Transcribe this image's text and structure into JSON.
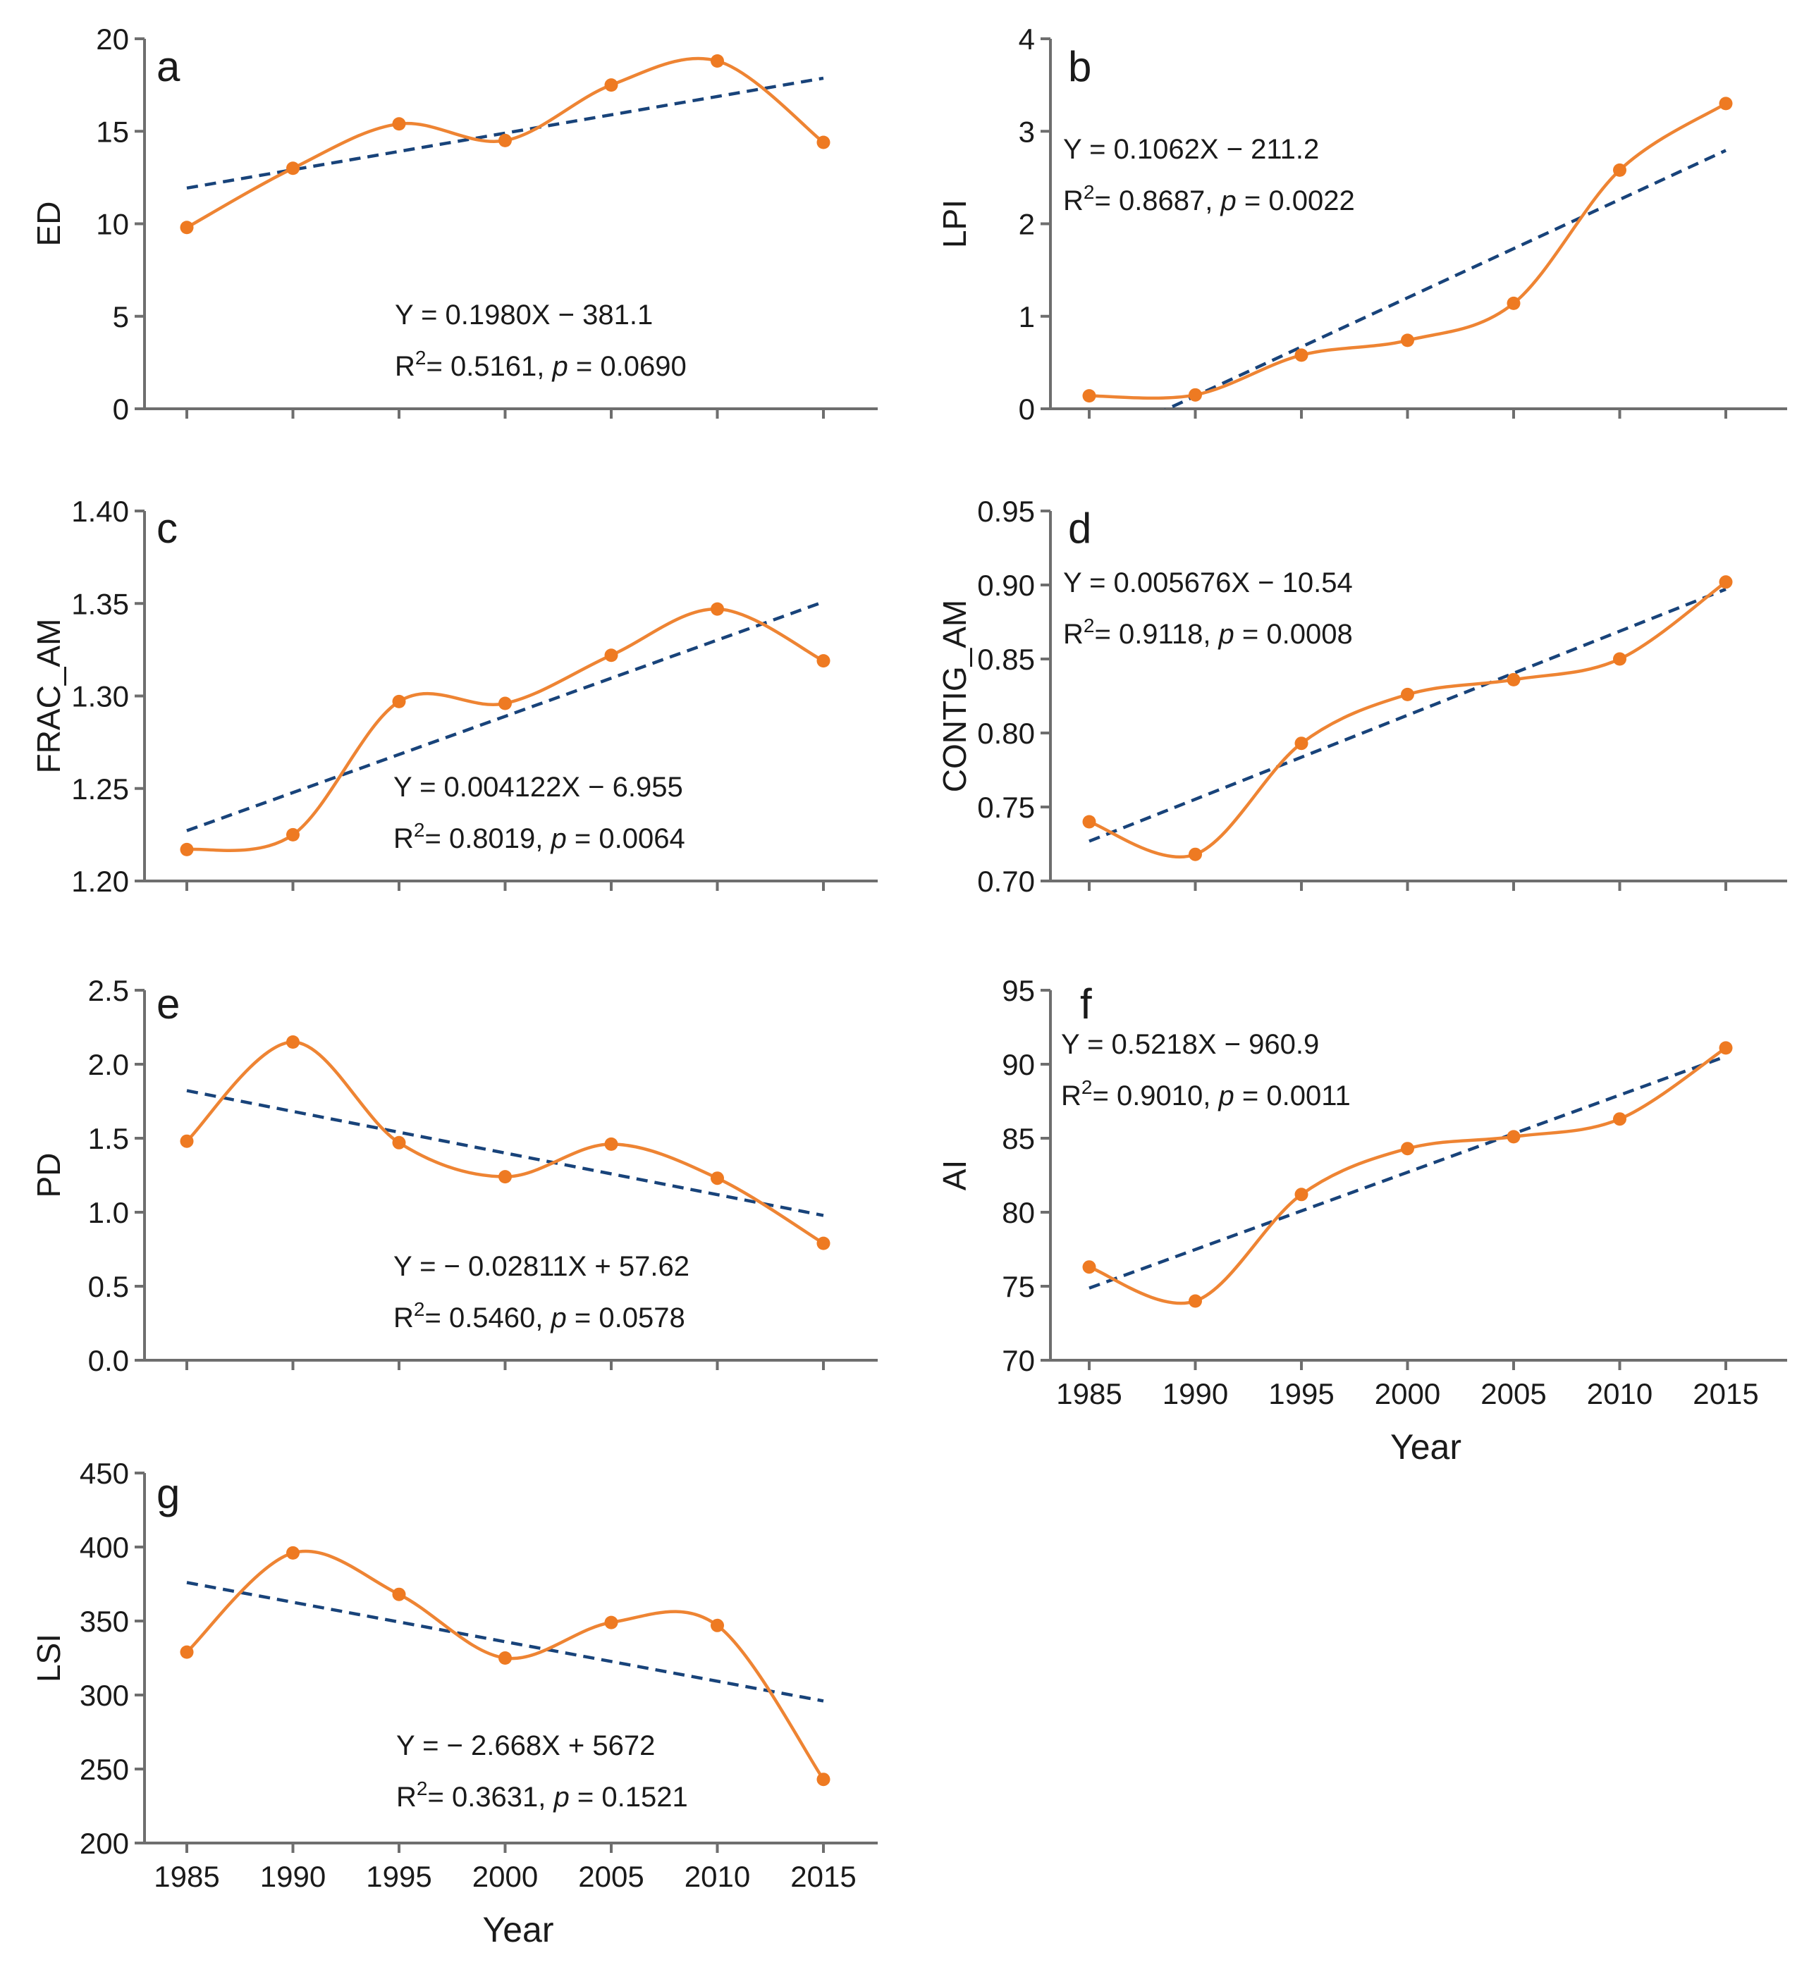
{
  "colors": {
    "curve": "#ee8433",
    "points": "#ee7a22",
    "trend": "#18437a",
    "axis": "#6e6e6e"
  },
  "chart_data": [
    {
      "id": "a",
      "type": "line",
      "panel_label": "a",
      "ylabel": "ED",
      "xlabel": "",
      "x": [
        1985,
        1990,
        1995,
        2000,
        2005,
        2010,
        2015
      ],
      "series": [
        {
          "name": "ED",
          "values": [
            9.8,
            13.0,
            15.4,
            14.5,
            17.5,
            18.8,
            14.4
          ]
        }
      ],
      "trend": {
        "slope": 0.198,
        "intercept": -381.1
      },
      "ylim": [
        0,
        20
      ],
      "yticks": [
        0,
        5,
        10,
        15,
        20
      ],
      "ytick_labels": [
        "0",
        "5",
        "10",
        "15",
        "20"
      ],
      "xlim": [
        1983,
        2018
      ],
      "xticks": [
        1985,
        1990,
        1995,
        2000,
        2005,
        2010,
        2015
      ],
      "show_xtick_labels": false,
      "equation": {
        "y_part": "Y = 0.1980X − 381.1",
        "r2_value": "= 0.5161, ",
        "p_value": "= 0.0690"
      }
    },
    {
      "id": "b",
      "type": "line",
      "panel_label": "b",
      "ylabel": "LPI",
      "xlabel": "",
      "x": [
        1985,
        1990,
        1995,
        2000,
        2005,
        2010,
        2015
      ],
      "series": [
        {
          "name": "LPI",
          "values": [
            0.14,
            0.15,
            0.58,
            0.74,
            1.14,
            2.58,
            3.3
          ]
        }
      ],
      "trend": {
        "slope": 0.1062,
        "intercept": -211.2
      },
      "ylim": [
        0,
        4
      ],
      "yticks": [
        0,
        1,
        2,
        3,
        4
      ],
      "ytick_labels": [
        "0",
        "1",
        "2",
        "3",
        "4"
      ],
      "xlim": [
        1983,
        2018
      ],
      "xticks": [
        1985,
        1990,
        1995,
        2000,
        2005,
        2010,
        2015
      ],
      "show_xtick_labels": false,
      "equation": {
        "y_part": "Y = 0.1062X − 211.2",
        "r2_value": "= 0.8687, ",
        "p_value": "= 0.0022"
      }
    },
    {
      "id": "c",
      "type": "line",
      "panel_label": "c",
      "ylabel": "FRAC_AM",
      "xlabel": "",
      "x": [
        1985,
        1990,
        1995,
        2000,
        2005,
        2010,
        2015
      ],
      "series": [
        {
          "name": "FRAC_AM",
          "values": [
            1.217,
            1.225,
            1.297,
            1.296,
            1.322,
            1.347,
            1.319
          ]
        }
      ],
      "trend": {
        "slope": 0.004122,
        "intercept": -6.955
      },
      "ylim": [
        1.2,
        1.4
      ],
      "yticks": [
        1.2,
        1.25,
        1.3,
        1.35,
        1.4
      ],
      "ytick_labels": [
        "1.20",
        "1.25",
        "1.30",
        "1.35",
        "1.40"
      ],
      "xlim": [
        1983,
        2018
      ],
      "xticks": [
        1985,
        1990,
        1995,
        2000,
        2005,
        2010,
        2015
      ],
      "show_xtick_labels": false,
      "equation": {
        "y_part": "Y = 0.004122X − 6.955",
        "r2_value": "= 0.8019, ",
        "p_value": "= 0.0064"
      }
    },
    {
      "id": "d",
      "type": "line",
      "panel_label": "d",
      "ylabel": "CONTIG_AM",
      "xlabel": "",
      "x": [
        1985,
        1990,
        1995,
        2000,
        2005,
        2010,
        2015
      ],
      "series": [
        {
          "name": "CONTIG_AM",
          "values": [
            0.74,
            0.718,
            0.793,
            0.826,
            0.836,
            0.85,
            0.902
          ]
        }
      ],
      "trend": {
        "slope": 0.005676,
        "intercept": -10.54
      },
      "ylim": [
        0.7,
        0.95
      ],
      "yticks": [
        0.7,
        0.75,
        0.8,
        0.85,
        0.9,
        0.95
      ],
      "ytick_labels": [
        "0.70",
        "0.75",
        "0.80",
        "0.85",
        "0.90",
        "0.95"
      ],
      "xlim": [
        1983,
        2018
      ],
      "xticks": [
        1985,
        1990,
        1995,
        2000,
        2005,
        2010,
        2015
      ],
      "show_xtick_labels": false,
      "equation": {
        "y_part": "Y = 0.005676X − 10.54",
        "r2_value": "= 0.9118, ",
        "p_value": "= 0.0008"
      }
    },
    {
      "id": "e",
      "type": "line",
      "panel_label": "e",
      "ylabel": "PD",
      "xlabel": "",
      "x": [
        1985,
        1990,
        1995,
        2000,
        2005,
        2010,
        2015
      ],
      "series": [
        {
          "name": "PD",
          "values": [
            1.48,
            2.15,
            1.47,
            1.24,
            1.46,
            1.23,
            0.79
          ]
        }
      ],
      "trend": {
        "slope": -0.02811,
        "intercept": 57.62
      },
      "ylim": [
        0,
        2.5
      ],
      "yticks": [
        0,
        0.5,
        1.0,
        1.5,
        2.0,
        2.5
      ],
      "ytick_labels": [
        "0.0",
        "0.5",
        "1.0",
        "1.5",
        "2.0",
        "2.5"
      ],
      "xlim": [
        1983,
        2018
      ],
      "xticks": [
        1985,
        1990,
        1995,
        2000,
        2005,
        2010,
        2015
      ],
      "show_xtick_labels": false,
      "equation": {
        "y_part": "Y = − 0.02811X + 57.62",
        "r2_value": "= 0.5460, ",
        "p_value": "= 0.0578"
      }
    },
    {
      "id": "f",
      "type": "line",
      "panel_label": "f",
      "ylabel": "AI",
      "xlabel": "Year",
      "x": [
        1985,
        1990,
        1995,
        2000,
        2005,
        2010,
        2015
      ],
      "series": [
        {
          "name": "AI",
          "values": [
            76.3,
            74.0,
            81.2,
            84.3,
            85.1,
            86.3,
            91.1
          ]
        }
      ],
      "trend": {
        "slope": 0.5218,
        "intercept": -960.9
      },
      "ylim": [
        70,
        95
      ],
      "yticks": [
        70,
        75,
        80,
        85,
        90,
        95
      ],
      "ytick_labels": [
        "70",
        "75",
        "80",
        "85",
        "90",
        "95"
      ],
      "xlim": [
        1983,
        2018
      ],
      "xticks": [
        1985,
        1990,
        1995,
        2000,
        2005,
        2010,
        2015
      ],
      "show_xtick_labels": true,
      "xtick_labels": [
        "1985",
        "1990",
        "1995",
        "2000",
        "2005",
        "2010",
        "2015"
      ],
      "equation": {
        "y_part": "Y = 0.5218X − 960.9",
        "r2_value": "= 0.9010, ",
        "p_value": "= 0.0011"
      }
    },
    {
      "id": "g",
      "type": "line",
      "panel_label": "g",
      "ylabel": "LSI",
      "xlabel": "Year",
      "x": [
        1985,
        1990,
        1995,
        2000,
        2005,
        2010,
        2015
      ],
      "series": [
        {
          "name": "LSI",
          "values": [
            329,
            396,
            368,
            325,
            349,
            347,
            243
          ]
        }
      ],
      "trend": {
        "slope": -2.668,
        "intercept": 5672
      },
      "ylim": [
        200,
        450
      ],
      "yticks": [
        200,
        250,
        300,
        350,
        400,
        450
      ],
      "ytick_labels": [
        "200",
        "250",
        "300",
        "350",
        "400",
        "450"
      ],
      "xlim": [
        1983,
        2018
      ],
      "xticks": [
        1985,
        1990,
        1995,
        2000,
        2005,
        2010,
        2015
      ],
      "show_xtick_labels": true,
      "xtick_labels": [
        "1985",
        "1990",
        "1995",
        "2000",
        "2005",
        "2010",
        "2015"
      ],
      "equation": {
        "y_part": "Y = − 2.668X + 5672",
        "r2_value": "= 0.3631, ",
        "p_value": "= 0.1521"
      }
    }
  ]
}
